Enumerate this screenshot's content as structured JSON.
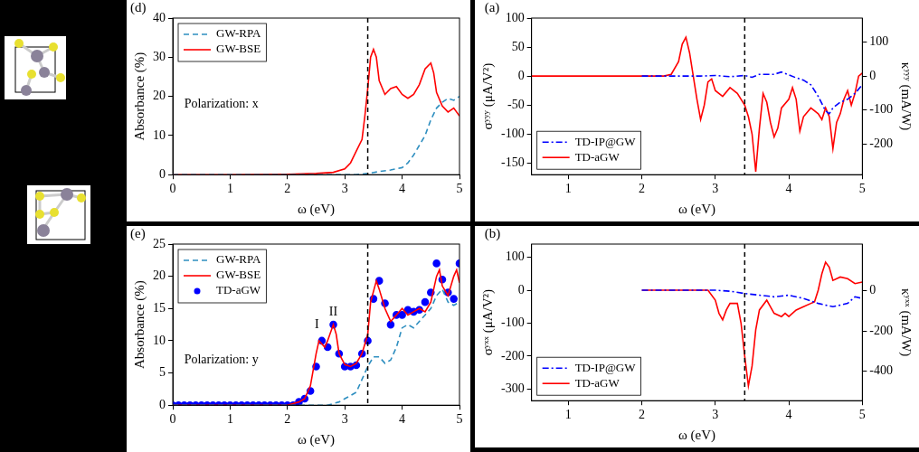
{
  "chart_data": [
    {
      "type": "line",
      "title": "(d)",
      "x_label": "ω (eV)",
      "y_label": "Absorbance (%)",
      "xlim": [
        0,
        5
      ],
      "xticks": [
        0,
        1,
        2,
        3,
        4,
        5
      ],
      "ylim": [
        0,
        40
      ],
      "yticks": [
        0,
        10,
        20,
        30,
        40
      ],
      "grid": false,
      "legend": "upper left",
      "vlines": [
        3.4
      ],
      "annotations": [
        {
          "text": "Polarization: x"
        }
      ],
      "series": [
        {
          "name": "GW-RPA",
          "color": "#2f8fc0",
          "line_style": "dashed",
          "x": [
            0,
            3.2,
            3.4,
            3.6,
            3.8,
            4.0,
            4.1,
            4.2,
            4.3,
            4.4,
            4.5,
            4.6,
            4.7,
            4.8,
            4.9,
            5.0
          ],
          "values": [
            0,
            0,
            0.3,
            0.8,
            1.2,
            1.8,
            3,
            5,
            7.5,
            10,
            14,
            17,
            18.5,
            19.5,
            19,
            20
          ]
        },
        {
          "name": "GW-BSE",
          "color": "#ff0000",
          "line_style": "solid",
          "x": [
            0,
            1,
            2,
            2.5,
            2.8,
            3.0,
            3.1,
            3.2,
            3.3,
            3.35,
            3.4,
            3.45,
            3.5,
            3.55,
            3.6,
            3.7,
            3.8,
            3.9,
            4.0,
            4.1,
            4.2,
            4.3,
            4.4,
            4.5,
            4.55,
            4.6,
            4.7,
            4.8,
            4.9,
            5.0
          ],
          "values": [
            0,
            0,
            0.1,
            0.3,
            0.6,
            1.5,
            3,
            6,
            9,
            15,
            22,
            30,
            32,
            30,
            24,
            20.5,
            22,
            22.5,
            20.5,
            19.5,
            20.5,
            23,
            27,
            28.5,
            26,
            21,
            17.5,
            16,
            17,
            15
          ]
        }
      ]
    },
    {
      "type": "line",
      "title": "(e)",
      "x_label": "ω (eV)",
      "y_label": "Absorbance (%)",
      "xlim": [
        0,
        5
      ],
      "xticks": [
        0,
        1,
        2,
        3,
        4,
        5
      ],
      "ylim": [
        0,
        25
      ],
      "yticks": [
        0,
        5,
        10,
        15,
        20,
        25
      ],
      "grid": false,
      "legend": "upper left",
      "vlines": [
        3.4
      ],
      "annotations": [
        {
          "text": "I"
        },
        {
          "text": "II"
        },
        {
          "text": "Polarization: y"
        }
      ],
      "series": [
        {
          "name": "GW-RPA",
          "color": "#2f8fc0",
          "line_style": "dashed",
          "x": [
            0,
            2.7,
            2.9,
            3.0,
            3.2,
            3.3,
            3.4,
            3.5,
            3.6,
            3.7,
            3.8,
            3.9,
            4.0,
            4.1,
            4.2,
            4.3,
            4.4,
            4.5,
            4.6,
            4.7,
            4.8,
            4.9,
            5.0
          ],
          "values": [
            0,
            0,
            0.5,
            1,
            2,
            4,
            6,
            7.5,
            7.5,
            6.5,
            7,
            9,
            12,
            12.5,
            12,
            13,
            14,
            15,
            17,
            18,
            16,
            15.5,
            16
          ]
        },
        {
          "name": "GW-BSE",
          "color": "#ff0000",
          "line_style": "solid",
          "x": [
            0,
            2.0,
            2.2,
            2.3,
            2.4,
            2.5,
            2.55,
            2.6,
            2.65,
            2.7,
            2.8,
            2.85,
            2.9,
            3.0,
            3.1,
            3.2,
            3.3,
            3.4,
            3.45,
            3.55,
            3.6,
            3.7,
            3.8,
            3.9,
            4.0,
            4.1,
            4.2,
            4.3,
            4.4,
            4.5,
            4.6,
            4.65,
            4.7,
            4.8,
            4.9,
            4.95,
            5.0
          ],
          "values": [
            0,
            0,
            0.5,
            1,
            3,
            8,
            10,
            9.5,
            9,
            10,
            12.5,
            11,
            8,
            6.3,
            6,
            6.5,
            8,
            11,
            16,
            19.3,
            18,
            15,
            13,
            14,
            15,
            14,
            14.5,
            15,
            14.5,
            16,
            20,
            21,
            18.5,
            17,
            20,
            21,
            19
          ]
        },
        {
          "name": "TD-aGW",
          "color": "#0000ff",
          "type": "scatter",
          "marker": "circle",
          "x": [
            0,
            0.1,
            0.2,
            0.3,
            0.4,
            0.5,
            0.6,
            0.7,
            0.8,
            0.9,
            1.0,
            1.1,
            1.2,
            1.3,
            1.4,
            1.5,
            1.6,
            1.7,
            1.8,
            1.9,
            2.0,
            2.1,
            2.2,
            2.3,
            2.4,
            2.5,
            2.6,
            2.7,
            2.8,
            2.9,
            3.0,
            3.1,
            3.2,
            3.3,
            3.4,
            3.5,
            3.6,
            3.7,
            3.8,
            3.9,
            4.0,
            4.1,
            4.2,
            4.3,
            4.4,
            4.5,
            4.6,
            4.7,
            4.8,
            4.9,
            5.0
          ],
          "values": [
            0,
            0,
            0,
            0,
            0,
            0,
            0,
            0,
            0,
            0,
            0,
            0,
            0,
            0,
            0,
            0,
            0,
            0,
            0,
            0,
            0,
            0,
            0.5,
            1,
            2.2,
            6,
            10,
            9,
            12.5,
            8,
            6,
            6,
            6.2,
            8,
            10,
            16.5,
            19.3,
            15.8,
            12.5,
            14,
            14,
            14.8,
            14.5,
            14.8,
            16,
            17.5,
            22,
            19.5,
            17.5,
            16.5,
            22
          ]
        }
      ]
    },
    {
      "type": "line",
      "title": "(a)",
      "x_label": "ω (eV)",
      "y_label": "σʸʸʸ (μA/V²)",
      "y2_label": "κʸʸʸ (mA/W)",
      "xlim": [
        0.5,
        5
      ],
      "xticks": [
        1,
        2,
        3,
        4,
        5
      ],
      "ylim": [
        -170,
        100
      ],
      "yticks": [
        -150,
        -100,
        -50,
        0,
        50,
        100
      ],
      "y2lim": [
        -290,
        170
      ],
      "y2ticks": [
        -200,
        -100,
        0,
        100
      ],
      "grid": false,
      "legend": "lower left",
      "vlines": [
        3.4
      ],
      "series": [
        {
          "name": "TD-IP@GW",
          "color": "#0000ff",
          "line_style": "dashdot",
          "x": [
            2.0,
            2.8,
            3.0,
            3.2,
            3.4,
            3.5,
            3.6,
            3.8,
            3.9,
            4.0,
            4.1,
            4.2,
            4.3,
            4.4,
            4.5,
            4.55,
            4.6,
            4.7,
            4.8,
            4.9,
            5.0
          ],
          "values": [
            0,
            0,
            1,
            -1,
            1,
            -2,
            3,
            3,
            7,
            2,
            -3,
            -7,
            -15,
            -35,
            -60,
            -65,
            -55,
            -45,
            -40,
            -30,
            -15
          ]
        },
        {
          "name": "TD-aGW",
          "color": "#ff0000",
          "line_style": "solid",
          "x": [
            0.5,
            2.3,
            2.4,
            2.5,
            2.55,
            2.6,
            2.65,
            2.7,
            2.75,
            2.8,
            2.85,
            2.9,
            2.95,
            3.0,
            3.1,
            3.2,
            3.3,
            3.4,
            3.45,
            3.5,
            3.55,
            3.6,
            3.65,
            3.7,
            3.75,
            3.8,
            3.85,
            3.9,
            4.0,
            4.05,
            4.1,
            4.15,
            4.2,
            4.3,
            4.4,
            4.45,
            4.5,
            4.55,
            4.6,
            4.65,
            4.7,
            4.75,
            4.8,
            4.85,
            4.9,
            4.95,
            5.0
          ],
          "values": [
            0,
            0,
            3,
            25,
            55,
            67,
            40,
            0,
            -40,
            -75,
            -50,
            -10,
            -5,
            -25,
            -35,
            -20,
            -30,
            -50,
            -70,
            -100,
            -165,
            -90,
            -30,
            -45,
            -80,
            -105,
            -90,
            -55,
            -40,
            -20,
            -40,
            -95,
            -70,
            -55,
            -65,
            -75,
            -55,
            -70,
            -125,
            -80,
            -65,
            -40,
            -25,
            -50,
            -30,
            0,
            5
          ]
        }
      ]
    },
    {
      "type": "line",
      "title": "(b)",
      "x_label": "ω (eV)",
      "y_label": "σʸˣˣ (μA/V²)",
      "y2_label": "κʸˣˣ (mA/W)",
      "xlim": [
        0.5,
        5
      ],
      "xticks": [
        1,
        2,
        3,
        4,
        5
      ],
      "ylim": [
        -335,
        140
      ],
      "yticks": [
        -300,
        -200,
        -100,
        0,
        100
      ],
      "y2lim": [
        -545,
        230
      ],
      "y2ticks": [
        -400,
        -200,
        0
      ],
      "grid": false,
      "legend": "lower left",
      "vlines": [
        3.4
      ],
      "series": [
        {
          "name": "TD-IP@GW",
          "color": "#0000ff",
          "line_style": "dashdot",
          "x": [
            2.0,
            3.0,
            3.2,
            3.4,
            3.6,
            3.8,
            4.0,
            4.2,
            4.4,
            4.6,
            4.7,
            4.8,
            4.9,
            5.0
          ],
          "values": [
            0,
            0,
            -3,
            -10,
            -15,
            -20,
            -15,
            -25,
            -40,
            -50,
            -45,
            -40,
            -20,
            -25
          ]
        },
        {
          "name": "TD-aGW",
          "color": "#ff0000",
          "line_style": "solid",
          "x": [
            2.0,
            2.9,
            3.0,
            3.05,
            3.1,
            3.15,
            3.2,
            3.3,
            3.35,
            3.4,
            3.45,
            3.5,
            3.55,
            3.6,
            3.7,
            3.75,
            3.8,
            3.9,
            3.95,
            4.0,
            4.1,
            4.2,
            4.3,
            4.35,
            4.4,
            4.45,
            4.5,
            4.55,
            4.6,
            4.7,
            4.8,
            4.9,
            5.0
          ],
          "values": [
            0,
            0,
            -30,
            -70,
            -90,
            -60,
            -40,
            -40,
            -100,
            -200,
            -290,
            -230,
            -120,
            -60,
            -30,
            -50,
            -70,
            -80,
            -70,
            -80,
            -60,
            -50,
            -40,
            -35,
            0,
            50,
            85,
            70,
            30,
            40,
            35,
            20,
            25
          ]
        }
      ]
    }
  ]
}
